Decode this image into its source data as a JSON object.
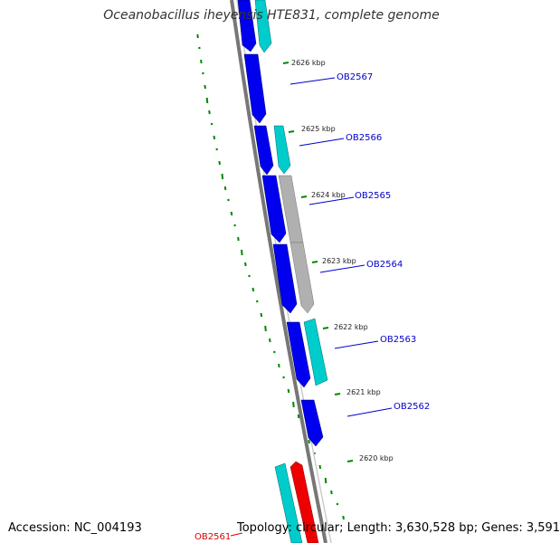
{
  "title": "Oceanobacillus iheyensis HTE831, complete genome",
  "footer": {
    "accession": "Accession: NC_004193",
    "summary": "Topology: circular; Length: 3,630,528 bp; Genes: 3,591"
  },
  "colors": {
    "forward_cds": "#0000ee",
    "reverse_cds": "#00cccc",
    "grey_cds": "#b0b0b0",
    "highlight_cds": "#ee0000",
    "backbone": "#777777",
    "gc_ticks": "#008800",
    "gene_label": "#0000cc",
    "highlight_label": "#dd0000"
  },
  "kbp_labels": [
    "2626 kbp",
    "2625 kbp",
    "2624 kbp",
    "2623 kbp",
    "2622 kbp",
    "2621 kbp",
    "2620 kbp"
  ],
  "genes": [
    {
      "label": "OB2567"
    },
    {
      "label": "OB2566"
    },
    {
      "label": "OB2565"
    },
    {
      "label": "OB2564"
    },
    {
      "label": "OB2563"
    },
    {
      "label": "OB2562"
    }
  ],
  "highlight_gene": {
    "label": "OB2561"
  }
}
